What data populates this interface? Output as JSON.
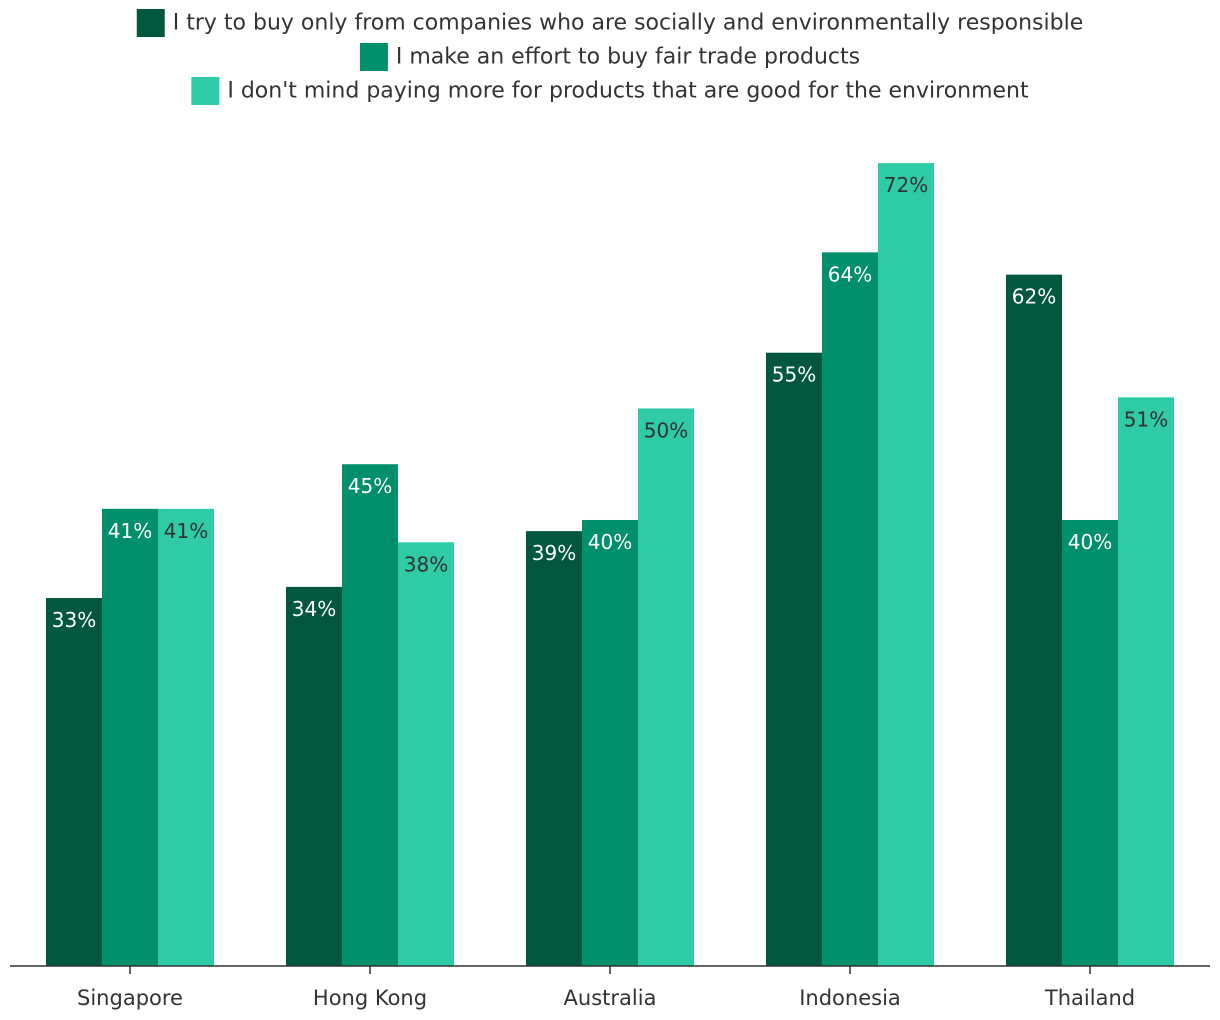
{
  "chart_data": {
    "type": "bar",
    "title": "",
    "xlabel": "",
    "ylabel": "",
    "ylim": [
      0,
      73
    ],
    "categories": [
      "Singapore",
      "Hong Kong",
      "Australia",
      "Indonesia",
      "Thailand"
    ],
    "series": [
      {
        "name": "I try to buy only from companies who are socially and environmentally responsible",
        "color": "#02583f",
        "label_color": "#ffffff",
        "values": [
          33,
          34,
          39,
          55,
          62
        ],
        "labels": [
          "33%",
          "34%",
          "39%",
          "55%",
          "62%"
        ]
      },
      {
        "name": "I make an effort to buy fair trade products",
        "color": "#008f6b",
        "label_color": "#ffffff",
        "values": [
          41,
          45,
          40,
          64,
          40
        ],
        "labels": [
          "41%",
          "45%",
          "40%",
          "64%",
          "40%"
        ]
      },
      {
        "name": "I don't mind paying more for products that are good for the environment",
        "color": "#2fcaa6",
        "label_color": "#333333",
        "values": [
          41,
          38,
          50,
          72,
          51
        ],
        "labels": [
          "41%",
          "38%",
          "50%",
          "72%",
          "51%"
        ]
      }
    ],
    "legend_position": "top",
    "grid": false,
    "axis_color": "#333333"
  }
}
